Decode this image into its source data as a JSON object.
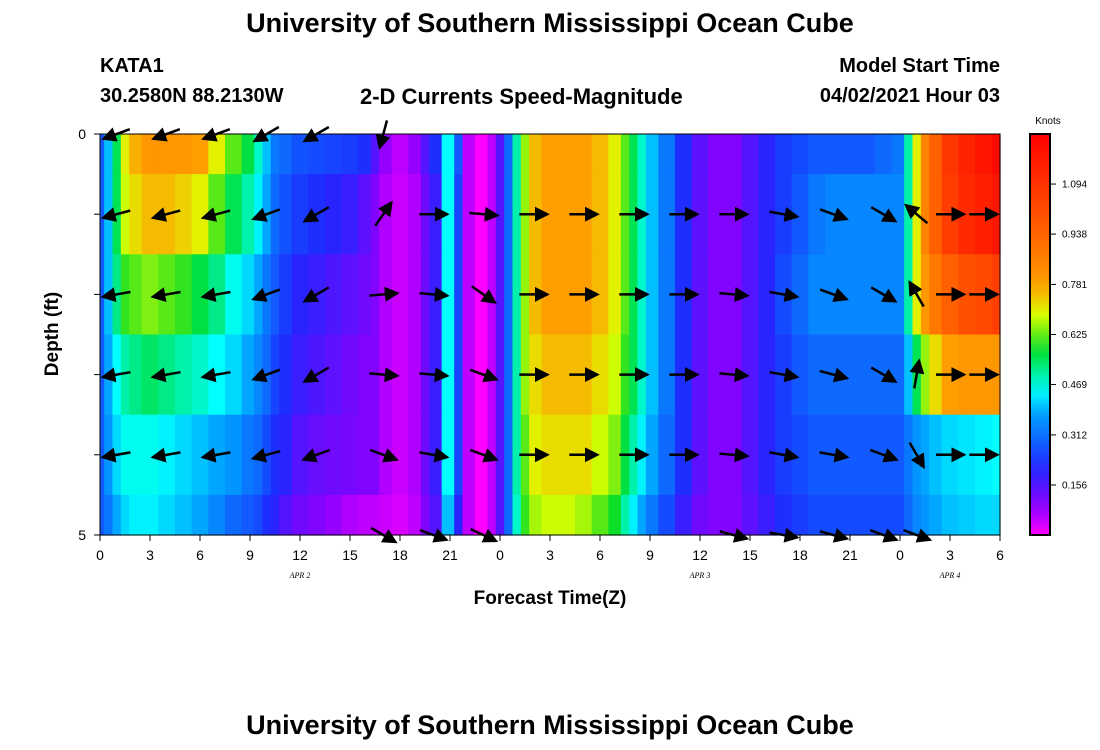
{
  "header": {
    "title": "University of Southern Mississippi Ocean Cube",
    "station_id": "KATA1",
    "station_coords": "30.2580N  88.2130W",
    "subtitle": "2-D Currents Speed-Magnitude",
    "model_label": "Model Start Time",
    "model_time": "04/02/2021 Hour 03"
  },
  "footer": {
    "title": "University of Southern Mississippi Ocean Cube"
  },
  "chart_data": {
    "type": "heatmap",
    "title": "2-D Currents Speed-Magnitude",
    "xlabel": "Forecast Time(Z)",
    "ylabel": "Depth (ft)",
    "colorbar_label": "Knots",
    "x_hours": [
      0,
      54
    ],
    "y_depth_ft": [
      0,
      5
    ],
    "x_tick_labels": [
      "0",
      "3",
      "6",
      "9",
      "12",
      "15",
      "18",
      "21",
      "0",
      "3",
      "6",
      "9",
      "12",
      "15",
      "18",
      "21",
      "0",
      "3",
      "6"
    ],
    "x_tick_hours": [
      0,
      3,
      6,
      9,
      12,
      15,
      18,
      21,
      24,
      27,
      30,
      33,
      36,
      39,
      42,
      45,
      48,
      51,
      54
    ],
    "date_labels": [
      {
        "label": "APR 2",
        "hour": 12
      },
      {
        "label": "APR 3",
        "hour": 36
      },
      {
        "label": "APR 4",
        "hour": 51
      }
    ],
    "y_tick_labels": [
      {
        "label": "0",
        "depth": 0
      },
      {
        "label": "5",
        "depth": 5
      }
    ],
    "colorbar_ticks": [
      "0.156",
      "0.312",
      "0.469",
      "0.625",
      "0.781",
      "0.938",
      "1.094"
    ],
    "colorbar_tick_values": [
      0.156,
      0.312,
      0.469,
      0.625,
      0.781,
      0.938,
      1.094
    ],
    "colorbar_range": [
      0,
      1.25
    ],
    "depth_rows": [
      0,
      1,
      2,
      3,
      4,
      5
    ],
    "speed_profile_hours": [
      0,
      0.5,
      1,
      1.5,
      2,
      3,
      4,
      5,
      6,
      7,
      8,
      9,
      9.5,
      10,
      10.5,
      11,
      12,
      13,
      14,
      15,
      16,
      16.5,
      17,
      18,
      19,
      19.5,
      20,
      21,
      21.5,
      22,
      23,
      23.5,
      24,
      24.5,
      25,
      25.5,
      26,
      27,
      28,
      29,
      30,
      31,
      31.5,
      32,
      32.5,
      33,
      34,
      35,
      36,
      37,
      38,
      39,
      40,
      41,
      42,
      43,
      44,
      45,
      46,
      47,
      48,
      48.5,
      49,
      49.5,
      50,
      51,
      52,
      53,
      54
    ],
    "speed_rows": [
      [
        0.28,
        0.4,
        0.55,
        0.7,
        0.76,
        0.8,
        0.8,
        0.8,
        0.78,
        0.7,
        0.62,
        0.56,
        0.48,
        0.4,
        0.32,
        0.3,
        0.27,
        0.26,
        0.25,
        0.24,
        0.22,
        0.15,
        0.08,
        0.05,
        0.08,
        0.15,
        0.22,
        0.45,
        0.28,
        0.05,
        0.0,
        0.05,
        0.15,
        0.3,
        0.5,
        0.65,
        0.75,
        0.78,
        0.78,
        0.78,
        0.75,
        0.7,
        0.62,
        0.55,
        0.48,
        0.4,
        0.32,
        0.22,
        0.14,
        0.1,
        0.1,
        0.15,
        0.2,
        0.24,
        0.26,
        0.28,
        0.28,
        0.28,
        0.28,
        0.3,
        0.32,
        0.5,
        0.7,
        0.85,
        0.95,
        1.08,
        1.14,
        1.18,
        1.22
      ],
      [
        0.28,
        0.4,
        0.55,
        0.68,
        0.72,
        0.75,
        0.75,
        0.73,
        0.7,
        0.62,
        0.55,
        0.5,
        0.44,
        0.38,
        0.3,
        0.27,
        0.24,
        0.22,
        0.2,
        0.18,
        0.14,
        0.1,
        0.06,
        0.04,
        0.06,
        0.12,
        0.18,
        0.45,
        0.25,
        0.05,
        0.0,
        0.05,
        0.15,
        0.3,
        0.5,
        0.65,
        0.75,
        0.78,
        0.78,
        0.78,
        0.75,
        0.7,
        0.62,
        0.55,
        0.48,
        0.4,
        0.32,
        0.22,
        0.14,
        0.1,
        0.1,
        0.15,
        0.2,
        0.24,
        0.28,
        0.32,
        0.34,
        0.34,
        0.34,
        0.34,
        0.34,
        0.5,
        0.7,
        0.85,
        0.95,
        1.06,
        1.12,
        1.15,
        1.18
      ],
      [
        0.28,
        0.4,
        0.52,
        0.6,
        0.62,
        0.64,
        0.62,
        0.6,
        0.56,
        0.52,
        0.46,
        0.42,
        0.38,
        0.32,
        0.28,
        0.24,
        0.2,
        0.18,
        0.16,
        0.14,
        0.12,
        0.1,
        0.06,
        0.04,
        0.06,
        0.12,
        0.18,
        0.45,
        0.25,
        0.05,
        0.0,
        0.05,
        0.15,
        0.3,
        0.5,
        0.65,
        0.75,
        0.78,
        0.78,
        0.78,
        0.75,
        0.7,
        0.62,
        0.55,
        0.48,
        0.4,
        0.32,
        0.22,
        0.14,
        0.1,
        0.1,
        0.15,
        0.2,
        0.26,
        0.3,
        0.34,
        0.34,
        0.34,
        0.34,
        0.34,
        0.34,
        0.5,
        0.7,
        0.8,
        0.88,
        0.95,
        1.0,
        1.02,
        1.05
      ],
      [
        0.28,
        0.38,
        0.45,
        0.5,
        0.52,
        0.54,
        0.52,
        0.5,
        0.48,
        0.45,
        0.42,
        0.38,
        0.34,
        0.3,
        0.25,
        0.22,
        0.18,
        0.16,
        0.14,
        0.12,
        0.1,
        0.1,
        0.06,
        0.04,
        0.06,
        0.12,
        0.18,
        0.45,
        0.25,
        0.05,
        0.0,
        0.05,
        0.15,
        0.3,
        0.5,
        0.65,
        0.72,
        0.75,
        0.75,
        0.75,
        0.72,
        0.68,
        0.6,
        0.55,
        0.48,
        0.4,
        0.32,
        0.22,
        0.14,
        0.1,
        0.1,
        0.15,
        0.2,
        0.24,
        0.28,
        0.3,
        0.3,
        0.3,
        0.3,
        0.3,
        0.3,
        0.4,
        0.55,
        0.65,
        0.72,
        0.78,
        0.8,
        0.8,
        0.8
      ],
      [
        0.28,
        0.36,
        0.42,
        0.46,
        0.46,
        0.46,
        0.44,
        0.42,
        0.4,
        0.38,
        0.36,
        0.32,
        0.3,
        0.26,
        0.22,
        0.2,
        0.15,
        0.13,
        0.12,
        0.11,
        0.1,
        0.1,
        0.06,
        0.04,
        0.06,
        0.12,
        0.18,
        0.45,
        0.25,
        0.05,
        0.0,
        0.05,
        0.15,
        0.3,
        0.5,
        0.62,
        0.7,
        0.72,
        0.72,
        0.72,
        0.68,
        0.64,
        0.56,
        0.5,
        0.44,
        0.38,
        0.3,
        0.22,
        0.14,
        0.1,
        0.1,
        0.15,
        0.2,
        0.24,
        0.26,
        0.28,
        0.28,
        0.28,
        0.28,
        0.28,
        0.28,
        0.32,
        0.36,
        0.38,
        0.4,
        0.42,
        0.43,
        0.44,
        0.45
      ],
      [
        0.28,
        0.32,
        0.38,
        0.42,
        0.44,
        0.44,
        0.42,
        0.4,
        0.38,
        0.34,
        0.3,
        0.28,
        0.26,
        0.22,
        0.2,
        0.15,
        0.12,
        0.1,
        0.08,
        0.06,
        0.05,
        0.05,
        0.04,
        0.03,
        0.05,
        0.1,
        0.15,
        0.4,
        0.2,
        0.05,
        0.0,
        0.05,
        0.15,
        0.3,
        0.48,
        0.6,
        0.66,
        0.68,
        0.68,
        0.66,
        0.62,
        0.58,
        0.5,
        0.44,
        0.38,
        0.32,
        0.26,
        0.18,
        0.12,
        0.1,
        0.1,
        0.14,
        0.18,
        0.22,
        0.24,
        0.26,
        0.26,
        0.26,
        0.26,
        0.26,
        0.26,
        0.3,
        0.34,
        0.36,
        0.38,
        0.4,
        0.41,
        0.42,
        0.42
      ]
    ],
    "arrow_hours": [
      1,
      4,
      7,
      10,
      13,
      17,
      20,
      23,
      26,
      29,
      32,
      35,
      38,
      41,
      44,
      47,
      49,
      51,
      53
    ],
    "arrow_angles_deg": [
      [
        200,
        200,
        200,
        210,
        210,
        255,
        null,
        null,
        null,
        null,
        null,
        null,
        null,
        null,
        null,
        null,
        null,
        null,
        null
      ],
      [
        195,
        195,
        195,
        200,
        210,
        55,
        0,
        355,
        0,
        0,
        0,
        0,
        0,
        350,
        340,
        330,
        140,
        0,
        0
      ],
      [
        190,
        190,
        190,
        200,
        210,
        5,
        355,
        325,
        0,
        0,
        0,
        0,
        355,
        350,
        340,
        330,
        120,
        0,
        0
      ],
      [
        190,
        190,
        190,
        200,
        210,
        355,
        355,
        340,
        0,
        0,
        0,
        0,
        355,
        350,
        345,
        330,
        80,
        0,
        0
      ],
      [
        190,
        190,
        190,
        195,
        200,
        340,
        350,
        340,
        0,
        0,
        0,
        0,
        355,
        350,
        350,
        340,
        300,
        0,
        0
      ],
      [
        null,
        null,
        null,
        null,
        null,
        330,
        340,
        335,
        null,
        null,
        null,
        null,
        345,
        350,
        345,
        340,
        340,
        null,
        null
      ]
    ]
  }
}
